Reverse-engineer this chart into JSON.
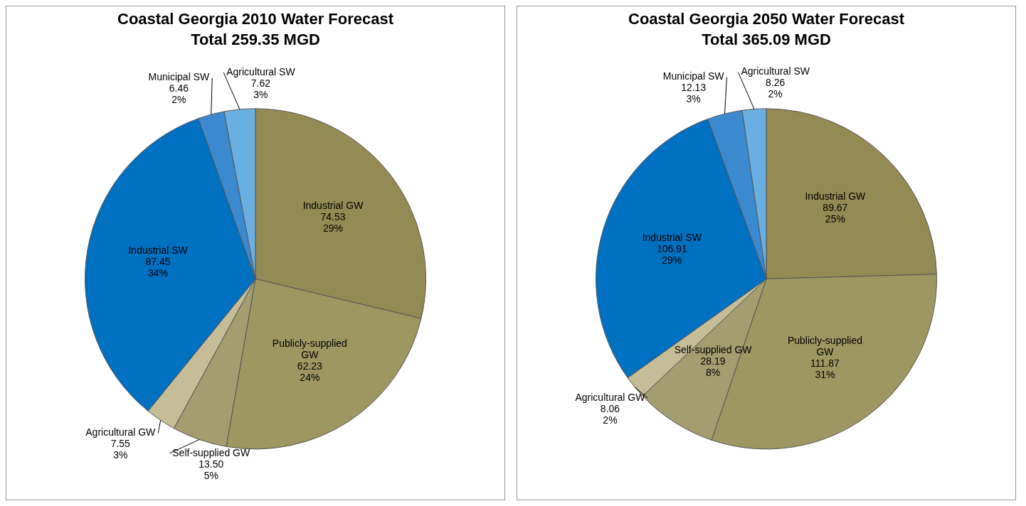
{
  "chart_data": [
    {
      "type": "pie",
      "title": "Coastal Georgia 2010 Water Forecast",
      "subtitle": "Total 259.35 MGD",
      "categories": [
        "Industrial GW",
        "Publicly-supplied GW",
        "Self-supplied GW",
        "Agricultural GW",
        "Industrial SW",
        "Municipal SW",
        "Agricultural SW"
      ],
      "values": [
        74.53,
        62.23,
        13.5,
        7.55,
        87.45,
        6.46,
        7.62
      ],
      "value_labels": [
        "74.53\n29%",
        "62.23\n24%",
        "13.50\n5%",
        "7.55\n3%",
        "87.45\n34%",
        "6.46\n2%",
        "7.62\n3%"
      ],
      "colors": [
        "#948a54",
        "#9e9762",
        "#a39d70",
        "#c4bd97",
        "#0070c0",
        "#3b8ad0",
        "#6aafe2"
      ],
      "legend": false
    },
    {
      "type": "pie",
      "title": "Coastal Georgia 2050 Water Forecast",
      "subtitle": "Total 365.09 MGD",
      "categories": [
        "Industrial GW",
        "Publicly-supplied GW",
        "Self-supplied GW",
        "Agricultural GW",
        "Industrial SW",
        "Municipal SW",
        "Agricultural SW"
      ],
      "values": [
        89.67,
        111.87,
        28.19,
        8.06,
        106.91,
        12.13,
        8.26
      ],
      "value_labels": [
        "89.67\n25%",
        "111.87\n31%",
        "28.19\n8%",
        "8.06\n2%",
        "106.91\n29%",
        "12.13\n3%",
        "8.26\n2%"
      ],
      "colors": [
        "#948a54",
        "#9e9762",
        "#a39d70",
        "#c4bd97",
        "#0070c0",
        "#3b8ad0",
        "#6aafe2"
      ],
      "legend": false
    }
  ]
}
